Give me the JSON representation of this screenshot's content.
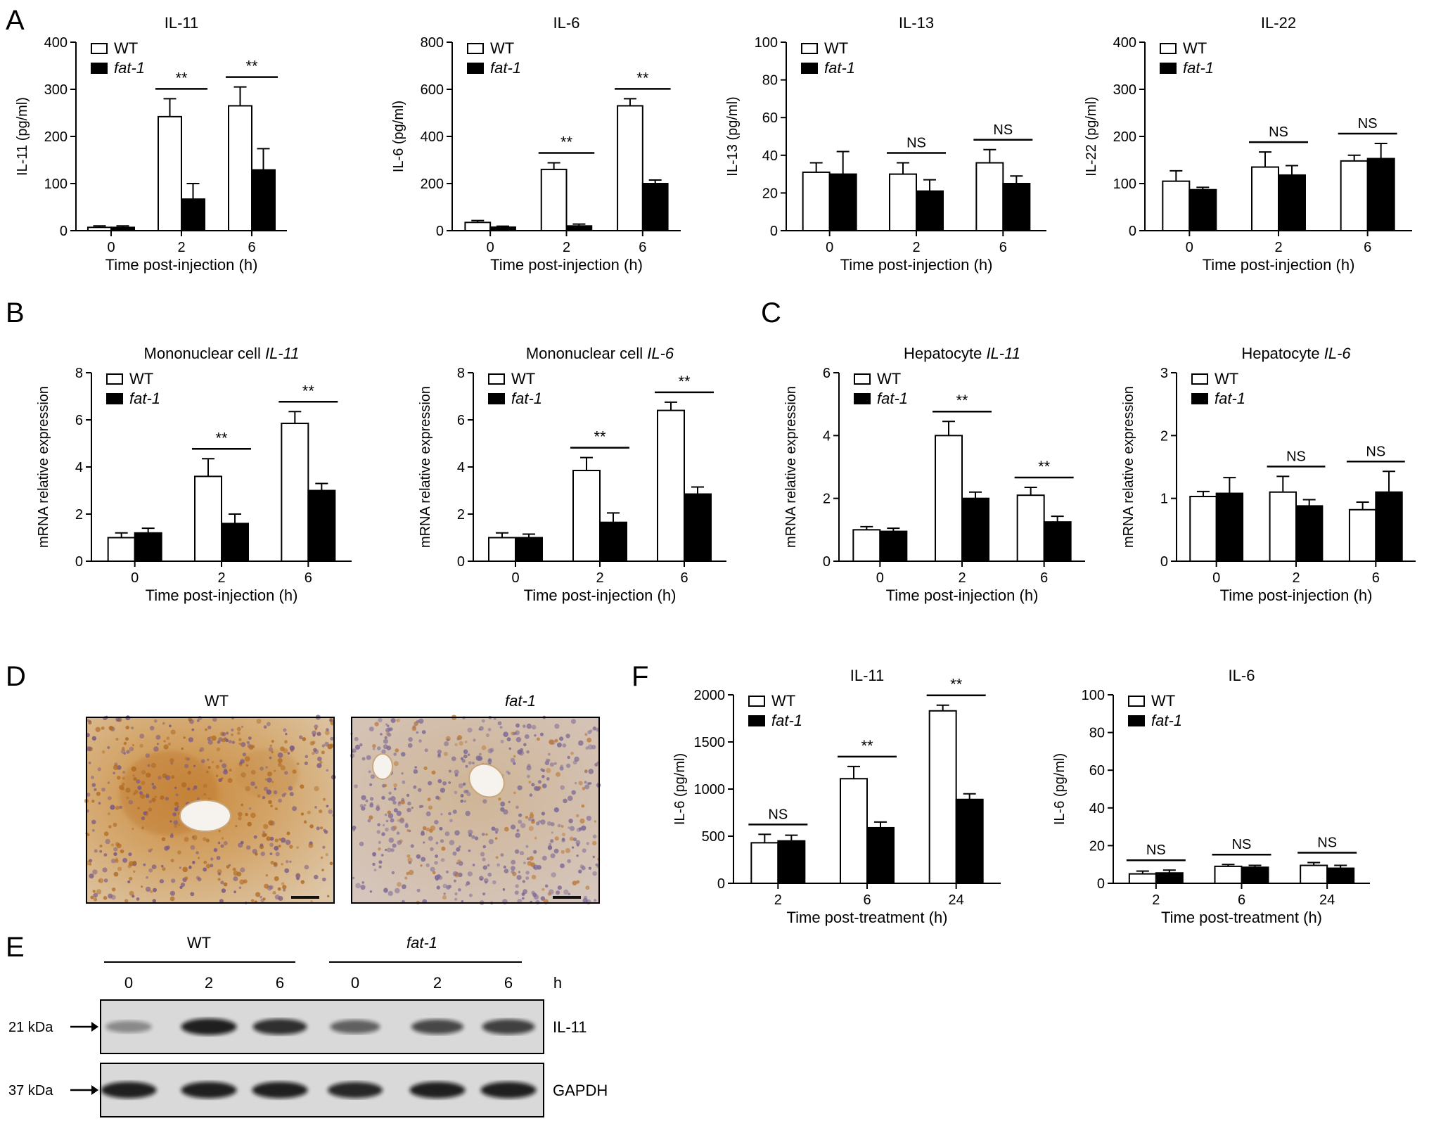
{
  "colors": {
    "wt_fill": "#ffffff",
    "fat1_fill": "#000000",
    "stroke": "#000000"
  },
  "panel_letters": [
    "A",
    "B",
    "C",
    "D",
    "E",
    "F"
  ],
  "legend": {
    "wt": "WT",
    "fat1": "fat-1"
  },
  "chart_data": [
    {
      "panel": "A",
      "type": "bar",
      "title": "IL-11",
      "ylabel": "IL-11 (pg/ml)",
      "xlabel": "Time post-injection (h)",
      "categories": [
        "0",
        "2",
        "6"
      ],
      "ylim": [
        0,
        400
      ],
      "yticks": [
        0,
        100,
        200,
        300,
        400
      ],
      "series": [
        {
          "name": "WT",
          "values": [
            7,
            242,
            265
          ],
          "errors": [
            3,
            38,
            40
          ]
        },
        {
          "name": "fat-1",
          "values": [
            7,
            67,
            129
          ],
          "errors": [
            3,
            33,
            45
          ]
        }
      ],
      "significance": [
        "",
        "**",
        "**"
      ]
    },
    {
      "panel": "A",
      "type": "bar",
      "title": "IL-6",
      "ylabel": "IL-6 (pg/ml)",
      "xlabel": "Time post-injection (h)",
      "categories": [
        "0",
        "2",
        "6"
      ],
      "ylim": [
        0,
        800
      ],
      "yticks": [
        0,
        200,
        400,
        600,
        800
      ],
      "series": [
        {
          "name": "WT",
          "values": [
            35,
            260,
            530
          ],
          "errors": [
            8,
            28,
            30
          ]
        },
        {
          "name": "fat-1",
          "values": [
            15,
            20,
            200
          ],
          "errors": [
            4,
            8,
            15
          ]
        }
      ],
      "significance": [
        "",
        "**",
        "**"
      ]
    },
    {
      "panel": "A",
      "type": "bar",
      "title": "IL-13",
      "ylabel": "IL-13 (pg/ml)",
      "xlabel": "Time post-injection (h)",
      "categories": [
        "0",
        "2",
        "6"
      ],
      "ylim": [
        0,
        100
      ],
      "yticks": [
        0,
        20,
        40,
        60,
        80,
        100
      ],
      "series": [
        {
          "name": "WT",
          "values": [
            31,
            30,
            36
          ],
          "errors": [
            5,
            6,
            7
          ]
        },
        {
          "name": "fat-1",
          "values": [
            30,
            21,
            25
          ],
          "errors": [
            12,
            6,
            4
          ]
        }
      ],
      "significance": [
        "",
        "NS",
        "NS"
      ]
    },
    {
      "panel": "A",
      "type": "bar",
      "title": "IL-22",
      "ylabel": "IL-22 (pg/ml)",
      "xlabel": "Time post-injection (h)",
      "categories": [
        "0",
        "2",
        "6"
      ],
      "ylim": [
        0,
        400
      ],
      "yticks": [
        0,
        100,
        200,
        300,
        400
      ],
      "series": [
        {
          "name": "WT",
          "values": [
            105,
            135,
            148
          ],
          "errors": [
            22,
            32,
            12
          ]
        },
        {
          "name": "fat-1",
          "values": [
            87,
            118,
            153
          ],
          "errors": [
            5,
            20,
            32
          ]
        }
      ],
      "significance": [
        "",
        "NS",
        "NS"
      ]
    },
    {
      "panel": "B",
      "type": "bar",
      "title_prefix": "Mononuclear cell ",
      "title_gene": "IL-11",
      "ylabel": "mRNA relative expression",
      "xlabel": "Time post-injection (h)",
      "categories": [
        "0",
        "2",
        "6"
      ],
      "ylim": [
        0,
        8
      ],
      "yticks": [
        0,
        2,
        4,
        6,
        8
      ],
      "series": [
        {
          "name": "WT",
          "values": [
            1.0,
            3.6,
            5.85
          ],
          "errors": [
            0.2,
            0.75,
            0.5
          ]
        },
        {
          "name": "fat-1",
          "values": [
            1.2,
            1.6,
            3.0
          ],
          "errors": [
            0.2,
            0.4,
            0.3
          ]
        }
      ],
      "significance": [
        "",
        "**",
        "**"
      ]
    },
    {
      "panel": "B",
      "type": "bar",
      "title_prefix": "Mononuclear cell ",
      "title_gene": "IL-6",
      "ylabel": "mRNA relative expression",
      "xlabel": "Time post-injection (h)",
      "categories": [
        "0",
        "2",
        "6"
      ],
      "ylim": [
        0,
        8
      ],
      "yticks": [
        0,
        2,
        4,
        6,
        8
      ],
      "series": [
        {
          "name": "WT",
          "values": [
            1.0,
            3.85,
            6.4
          ],
          "errors": [
            0.2,
            0.55,
            0.35
          ]
        },
        {
          "name": "fat-1",
          "values": [
            1.0,
            1.65,
            2.85
          ],
          "errors": [
            0.15,
            0.4,
            0.3
          ]
        }
      ],
      "significance": [
        "",
        "**",
        "**"
      ]
    },
    {
      "panel": "C",
      "type": "bar",
      "title_prefix": "Hepatocyte ",
      "title_gene": "IL-11",
      "ylabel": "mRNA relative expression",
      "xlabel": "Time post-injection (h)",
      "categories": [
        "0",
        "2",
        "6"
      ],
      "ylim": [
        0,
        6
      ],
      "yticks": [
        0,
        2,
        4,
        6
      ],
      "series": [
        {
          "name": "WT",
          "values": [
            1.0,
            4.0,
            2.1
          ],
          "errors": [
            0.1,
            0.45,
            0.25
          ]
        },
        {
          "name": "fat-1",
          "values": [
            0.95,
            2.0,
            1.25
          ],
          "errors": [
            0.1,
            0.2,
            0.18
          ]
        }
      ],
      "significance": [
        "",
        "**",
        "**"
      ]
    },
    {
      "panel": "C",
      "type": "bar",
      "title_prefix": "Hepatocyte ",
      "title_gene": "IL-6",
      "ylabel": "mRNA relative expression",
      "xlabel": "Time post-injection (h)",
      "categories": [
        "0",
        "2",
        "6"
      ],
      "ylim": [
        0,
        3
      ],
      "yticks": [
        0,
        1,
        2,
        3
      ],
      "series": [
        {
          "name": "WT",
          "values": [
            1.03,
            1.1,
            0.82
          ],
          "errors": [
            0.08,
            0.25,
            0.12
          ]
        },
        {
          "name": "fat-1",
          "values": [
            1.08,
            0.88,
            1.1
          ],
          "errors": [
            0.25,
            0.1,
            0.33
          ]
        }
      ],
      "significance": [
        "",
        "NS",
        "NS"
      ]
    },
    {
      "panel": "F",
      "type": "bar",
      "title": "IL-11",
      "ylabel": "IL-6 (pg/ml)",
      "xlabel": "Time post-treatment (h)",
      "categories": [
        "2",
        "6",
        "24"
      ],
      "ylim": [
        0,
        2000
      ],
      "yticks": [
        0,
        500,
        1000,
        1500,
        2000
      ],
      "series": [
        {
          "name": "WT",
          "values": [
            430,
            1110,
            1830
          ],
          "errors": [
            90,
            130,
            60
          ]
        },
        {
          "name": "fat-1",
          "values": [
            450,
            590,
            890
          ],
          "errors": [
            60,
            60,
            60
          ]
        }
      ],
      "significance": [
        "NS",
        "**",
        "**"
      ]
    },
    {
      "panel": "F",
      "type": "bar",
      "title": "IL-6",
      "ylabel": "IL-6 (pg/ml)",
      "xlabel": "Time post-treatment (h)",
      "categories": [
        "2",
        "6",
        "24"
      ],
      "ylim": [
        0,
        100
      ],
      "yticks": [
        0,
        20,
        40,
        60,
        80,
        100
      ],
      "series": [
        {
          "name": "WT",
          "values": [
            5,
            9,
            9.5
          ],
          "errors": [
            1.5,
            1,
            1.5
          ]
        },
        {
          "name": "fat-1",
          "values": [
            5.5,
            8.5,
            8
          ],
          "errors": [
            1.5,
            1,
            1.5
          ]
        }
      ],
      "significance": [
        "NS",
        "NS",
        "NS"
      ]
    }
  ],
  "ihc": {
    "wt_label": "WT",
    "fat1_label": "fat-1"
  },
  "western": {
    "wt_label": "WT",
    "fat1_label": "fat-1",
    "lanes": [
      "0",
      "2",
      "6",
      "0",
      "2",
      "6"
    ],
    "unit": "h",
    "blots": [
      {
        "kda": "21 kDa",
        "protein": "IL-11",
        "intensity": [
          0.3,
          0.95,
          0.85,
          0.55,
          0.7,
          0.75
        ]
      },
      {
        "kda": "37 kDa",
        "protein": "GAPDH",
        "intensity": [
          0.95,
          0.95,
          0.95,
          0.9,
          0.95,
          0.95
        ]
      }
    ]
  }
}
